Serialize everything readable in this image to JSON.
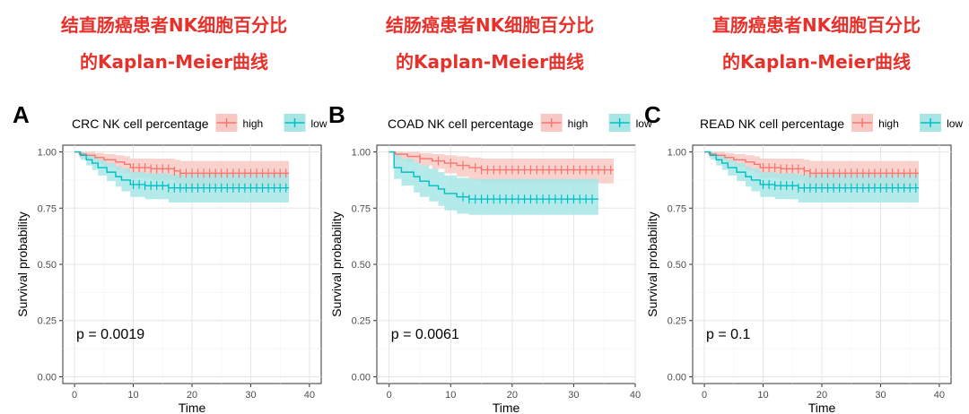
{
  "titles": [
    {
      "line1": "结直肠癌患者NK细胞百分比",
      "line2": "的Kaplan-Meier曲线"
    },
    {
      "line1": "结肠癌患者NK细胞百分比",
      "line2": "的Kaplan-Meier曲线"
    },
    {
      "line1": "直肠癌患者NK细胞百分比",
      "line2": "的Kaplan-Meier曲线"
    }
  ],
  "colors": {
    "high": "#f8766d",
    "low": "#00bfc4",
    "high_fill": "#f8c9c4",
    "low_fill": "#a8e6e6",
    "title": "#e8302a"
  },
  "chart_data": [
    {
      "type": "line",
      "panel_letter": "A",
      "legend_title": "CRC NK cell percentage",
      "xlabel": "Time",
      "ylabel": "Survival probability",
      "xlim": [
        -2,
        42
      ],
      "ylim": [
        -0.03,
        1.03
      ],
      "xticks": [
        0,
        10,
        20,
        30,
        40
      ],
      "yticks": [
        0.0,
        0.25,
        0.5,
        0.75,
        1.0
      ],
      "ytick_labels": [
        "0.00",
        "0.25",
        "0.50",
        "0.75",
        "1.00"
      ],
      "pvalue": "p = 0.0019",
      "series": [
        {
          "name": "high",
          "steps": [
            [
              0,
              1.0
            ],
            [
              0.8,
              0.99
            ],
            [
              2,
              0.985
            ],
            [
              3.5,
              0.975
            ],
            [
              5,
              0.965
            ],
            [
              7,
              0.955
            ],
            [
              8.5,
              0.945
            ],
            [
              9.5,
              0.93
            ],
            [
              13,
              0.925
            ],
            [
              17,
              0.915
            ],
            [
              18,
              0.905
            ]
          ],
          "band_lo": [
            [
              0,
              1.0
            ],
            [
              0.8,
              0.975
            ],
            [
              2,
              0.965
            ],
            [
              3.5,
              0.95
            ],
            [
              5,
              0.935
            ],
            [
              7,
              0.92
            ],
            [
              8.5,
              0.905
            ],
            [
              9.5,
              0.885
            ],
            [
              13,
              0.875
            ],
            [
              17,
              0.86
            ],
            [
              18,
              0.845
            ]
          ],
          "band_hi": [
            [
              0,
              1.0
            ],
            [
              0.8,
              1.0
            ],
            [
              2,
              1.0
            ],
            [
              3.5,
              0.995
            ],
            [
              5,
              0.99
            ],
            [
              7,
              0.985
            ],
            [
              8.5,
              0.98
            ],
            [
              9.5,
              0.97
            ],
            [
              13,
              0.97
            ],
            [
              17,
              0.965
            ],
            [
              18,
              0.96
            ]
          ],
          "end": 36.5,
          "censor": [
            10,
            11,
            12,
            13,
            14,
            15,
            16,
            17,
            18,
            19,
            20,
            21,
            22,
            23,
            24,
            25,
            26,
            27,
            28,
            29,
            30,
            31,
            32,
            33,
            34,
            35,
            36
          ]
        },
        {
          "name": "low",
          "steps": [
            [
              0,
              1.0
            ],
            [
              1,
              0.985
            ],
            [
              2,
              0.965
            ],
            [
              3,
              0.95
            ],
            [
              4,
              0.93
            ],
            [
              5.5,
              0.91
            ],
            [
              7,
              0.89
            ],
            [
              8,
              0.875
            ],
            [
              9.5,
              0.855
            ],
            [
              12,
              0.85
            ],
            [
              16,
              0.84
            ]
          ],
          "band_lo": [
            [
              0,
              1.0
            ],
            [
              1,
              0.965
            ],
            [
              2,
              0.94
            ],
            [
              3,
              0.92
            ],
            [
              4,
              0.895
            ],
            [
              5.5,
              0.87
            ],
            [
              7,
              0.845
            ],
            [
              8,
              0.825
            ],
            [
              9.5,
              0.8
            ],
            [
              12,
              0.79
            ],
            [
              16,
              0.775
            ]
          ],
          "band_hi": [
            [
              0,
              1.0
            ],
            [
              1,
              1.0
            ],
            [
              2,
              0.99
            ],
            [
              3,
              0.98
            ],
            [
              4,
              0.965
            ],
            [
              5.5,
              0.95
            ],
            [
              7,
              0.935
            ],
            [
              8,
              0.925
            ],
            [
              9.5,
              0.91
            ],
            [
              12,
              0.905
            ],
            [
              16,
              0.9
            ]
          ],
          "end": 36.5,
          "censor": [
            10,
            11,
            12,
            13,
            14,
            15,
            16,
            17,
            18,
            19,
            20,
            21,
            22,
            23,
            24,
            25,
            26,
            27,
            28,
            29,
            30,
            31,
            32,
            33,
            34,
            35,
            36
          ]
        }
      ]
    },
    {
      "type": "line",
      "panel_letter": "B",
      "legend_title": "COAD NK cell percentage",
      "xlabel": "Time",
      "ylabel": "Survival probability",
      "xlim": [
        -2,
        40
      ],
      "ylim": [
        -0.03,
        1.03
      ],
      "xticks": [
        0,
        10,
        20,
        30,
        40
      ],
      "yticks": [
        0.0,
        0.25,
        0.5,
        0.75,
        1.0
      ],
      "ytick_labels": [
        "0.00",
        "0.25",
        "0.50",
        "0.75",
        "1.00"
      ],
      "pvalue": "p = 0.0061",
      "series": [
        {
          "name": "high",
          "steps": [
            [
              0,
              1.0
            ],
            [
              1,
              0.99
            ],
            [
              3,
              0.98
            ],
            [
              5,
              0.97
            ],
            [
              7,
              0.96
            ],
            [
              9,
              0.95
            ],
            [
              11,
              0.94
            ],
            [
              13,
              0.93
            ],
            [
              15,
              0.92
            ]
          ],
          "band_lo": [
            [
              0,
              1.0
            ],
            [
              1,
              0.97
            ],
            [
              3,
              0.955
            ],
            [
              5,
              0.94
            ],
            [
              7,
              0.925
            ],
            [
              9,
              0.905
            ],
            [
              11,
              0.89
            ],
            [
              13,
              0.875
            ],
            [
              15,
              0.86
            ]
          ],
          "band_hi": [
            [
              0,
              1.0
            ],
            [
              1,
              1.0
            ],
            [
              3,
              1.0
            ],
            [
              5,
              0.995
            ],
            [
              7,
              0.99
            ],
            [
              9,
              0.985
            ],
            [
              11,
              0.98
            ],
            [
              13,
              0.975
            ],
            [
              15,
              0.97
            ]
          ],
          "end": 36.5,
          "censor": [
            5,
            8,
            10,
            12,
            14,
            15,
            16,
            17,
            18,
            19,
            20,
            21,
            22,
            23,
            24,
            25,
            26,
            27,
            28,
            29,
            30,
            31,
            32,
            33,
            34,
            35,
            36
          ]
        },
        {
          "name": "low",
          "steps": [
            [
              0,
              1.0
            ],
            [
              0.8,
              0.93
            ],
            [
              2,
              0.91
            ],
            [
              4,
              0.89
            ],
            [
              5,
              0.87
            ],
            [
              6.5,
              0.85
            ],
            [
              8,
              0.835
            ],
            [
              9,
              0.815
            ],
            [
              11,
              0.8
            ],
            [
              13,
              0.79
            ]
          ],
          "band_lo": [
            [
              0,
              1.0
            ],
            [
              0.8,
              0.88
            ],
            [
              2,
              0.85
            ],
            [
              4,
              0.82
            ],
            [
              5,
              0.8
            ],
            [
              6.5,
              0.78
            ],
            [
              8,
              0.76
            ],
            [
              9,
              0.74
            ],
            [
              11,
              0.725
            ],
            [
              13,
              0.72
            ]
          ],
          "band_hi": [
            [
              0,
              1.0
            ],
            [
              0.8,
              0.985
            ],
            [
              2,
              0.97
            ],
            [
              4,
              0.955
            ],
            [
              5,
              0.94
            ],
            [
              6.5,
              0.925
            ],
            [
              8,
              0.91
            ],
            [
              9,
              0.895
            ],
            [
              11,
              0.885
            ],
            [
              13,
              0.88
            ]
          ],
          "end": 34,
          "censor": [
            12,
            13,
            14,
            15,
            16,
            17,
            18,
            19,
            20,
            21,
            22,
            23,
            24,
            25,
            26,
            27,
            28,
            29,
            30,
            31,
            32,
            33
          ]
        }
      ]
    },
    {
      "type": "line",
      "panel_letter": "C",
      "legend_title": "READ NK cell percentage",
      "xlabel": "Time",
      "ylabel": "Survival probability",
      "xlim": [
        -2,
        42
      ],
      "ylim": [
        -0.03,
        1.03
      ],
      "xticks": [
        0,
        10,
        20,
        30,
        40
      ],
      "yticks": [
        0.0,
        0.25,
        0.5,
        0.75,
        1.0
      ],
      "ytick_labels": [
        "0.00",
        "0.25",
        "0.50",
        "0.75",
        "1.00"
      ],
      "pvalue": "p = 0.1",
      "series": [
        {
          "name": "high",
          "steps": [
            [
              0,
              1.0
            ],
            [
              0.8,
              0.99
            ],
            [
              2,
              0.985
            ],
            [
              3.5,
              0.975
            ],
            [
              5,
              0.965
            ],
            [
              7,
              0.955
            ],
            [
              8.5,
              0.945
            ],
            [
              9.5,
              0.93
            ],
            [
              13,
              0.925
            ],
            [
              17,
              0.915
            ],
            [
              18,
              0.905
            ]
          ],
          "band_lo": [
            [
              0,
              1.0
            ],
            [
              0.8,
              0.975
            ],
            [
              2,
              0.965
            ],
            [
              3.5,
              0.95
            ],
            [
              5,
              0.935
            ],
            [
              7,
              0.92
            ],
            [
              8.5,
              0.905
            ],
            [
              9.5,
              0.885
            ],
            [
              13,
              0.875
            ],
            [
              17,
              0.86
            ],
            [
              18,
              0.845
            ]
          ],
          "band_hi": [
            [
              0,
              1.0
            ],
            [
              0.8,
              1.0
            ],
            [
              2,
              1.0
            ],
            [
              3.5,
              0.995
            ],
            [
              5,
              0.99
            ],
            [
              7,
              0.985
            ],
            [
              8.5,
              0.98
            ],
            [
              9.5,
              0.97
            ],
            [
              13,
              0.97
            ],
            [
              17,
              0.965
            ],
            [
              18,
              0.96
            ]
          ],
          "end": 36.5,
          "censor": [
            10,
            11,
            12,
            13,
            14,
            15,
            16,
            17,
            18,
            19,
            20,
            21,
            22,
            23,
            24,
            25,
            26,
            27,
            28,
            29,
            30,
            31,
            32,
            33,
            34,
            35,
            36
          ]
        },
        {
          "name": "low",
          "steps": [
            [
              0,
              1.0
            ],
            [
              1,
              0.985
            ],
            [
              2,
              0.965
            ],
            [
              3,
              0.95
            ],
            [
              4,
              0.93
            ],
            [
              5.5,
              0.91
            ],
            [
              7,
              0.89
            ],
            [
              8,
              0.875
            ],
            [
              9.5,
              0.855
            ],
            [
              12,
              0.85
            ],
            [
              16,
              0.84
            ]
          ],
          "band_lo": [
            [
              0,
              1.0
            ],
            [
              1,
              0.965
            ],
            [
              2,
              0.94
            ],
            [
              3,
              0.92
            ],
            [
              4,
              0.895
            ],
            [
              5.5,
              0.87
            ],
            [
              7,
              0.845
            ],
            [
              8,
              0.825
            ],
            [
              9.5,
              0.8
            ],
            [
              12,
              0.79
            ],
            [
              16,
              0.775
            ]
          ],
          "band_hi": [
            [
              0,
              1.0
            ],
            [
              1,
              1.0
            ],
            [
              2,
              0.99
            ],
            [
              3,
              0.98
            ],
            [
              4,
              0.965
            ],
            [
              5.5,
              0.95
            ],
            [
              7,
              0.935
            ],
            [
              8,
              0.925
            ],
            [
              9.5,
              0.91
            ],
            [
              12,
              0.905
            ],
            [
              16,
              0.9
            ]
          ],
          "end": 36.5,
          "censor": [
            10,
            11,
            12,
            13,
            14,
            15,
            16,
            17,
            18,
            19,
            20,
            21,
            22,
            23,
            24,
            25,
            26,
            27,
            28,
            29,
            30,
            31,
            32,
            33,
            34,
            35,
            36
          ]
        }
      ]
    }
  ]
}
